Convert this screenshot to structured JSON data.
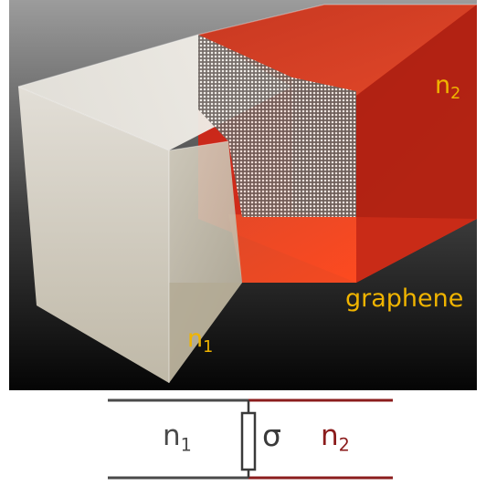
{
  "render": {
    "label_n2": {
      "base": "n",
      "sub": "2"
    },
    "label_graphene": "graphene",
    "label_n1": {
      "base": "n",
      "sub": "1"
    }
  },
  "circuit": {
    "label_n1": {
      "base": "n",
      "sub": "1"
    },
    "label_sigma": "σ",
    "label_n2": {
      "base": "n",
      "sub": "2"
    }
  },
  "colors": {
    "accent_label": "#f0b400",
    "medium_1": "#d8d2c2",
    "medium_2": "#e8361c",
    "wire_1": "#4a4a4a",
    "wire_2": "#8b1c1c"
  }
}
